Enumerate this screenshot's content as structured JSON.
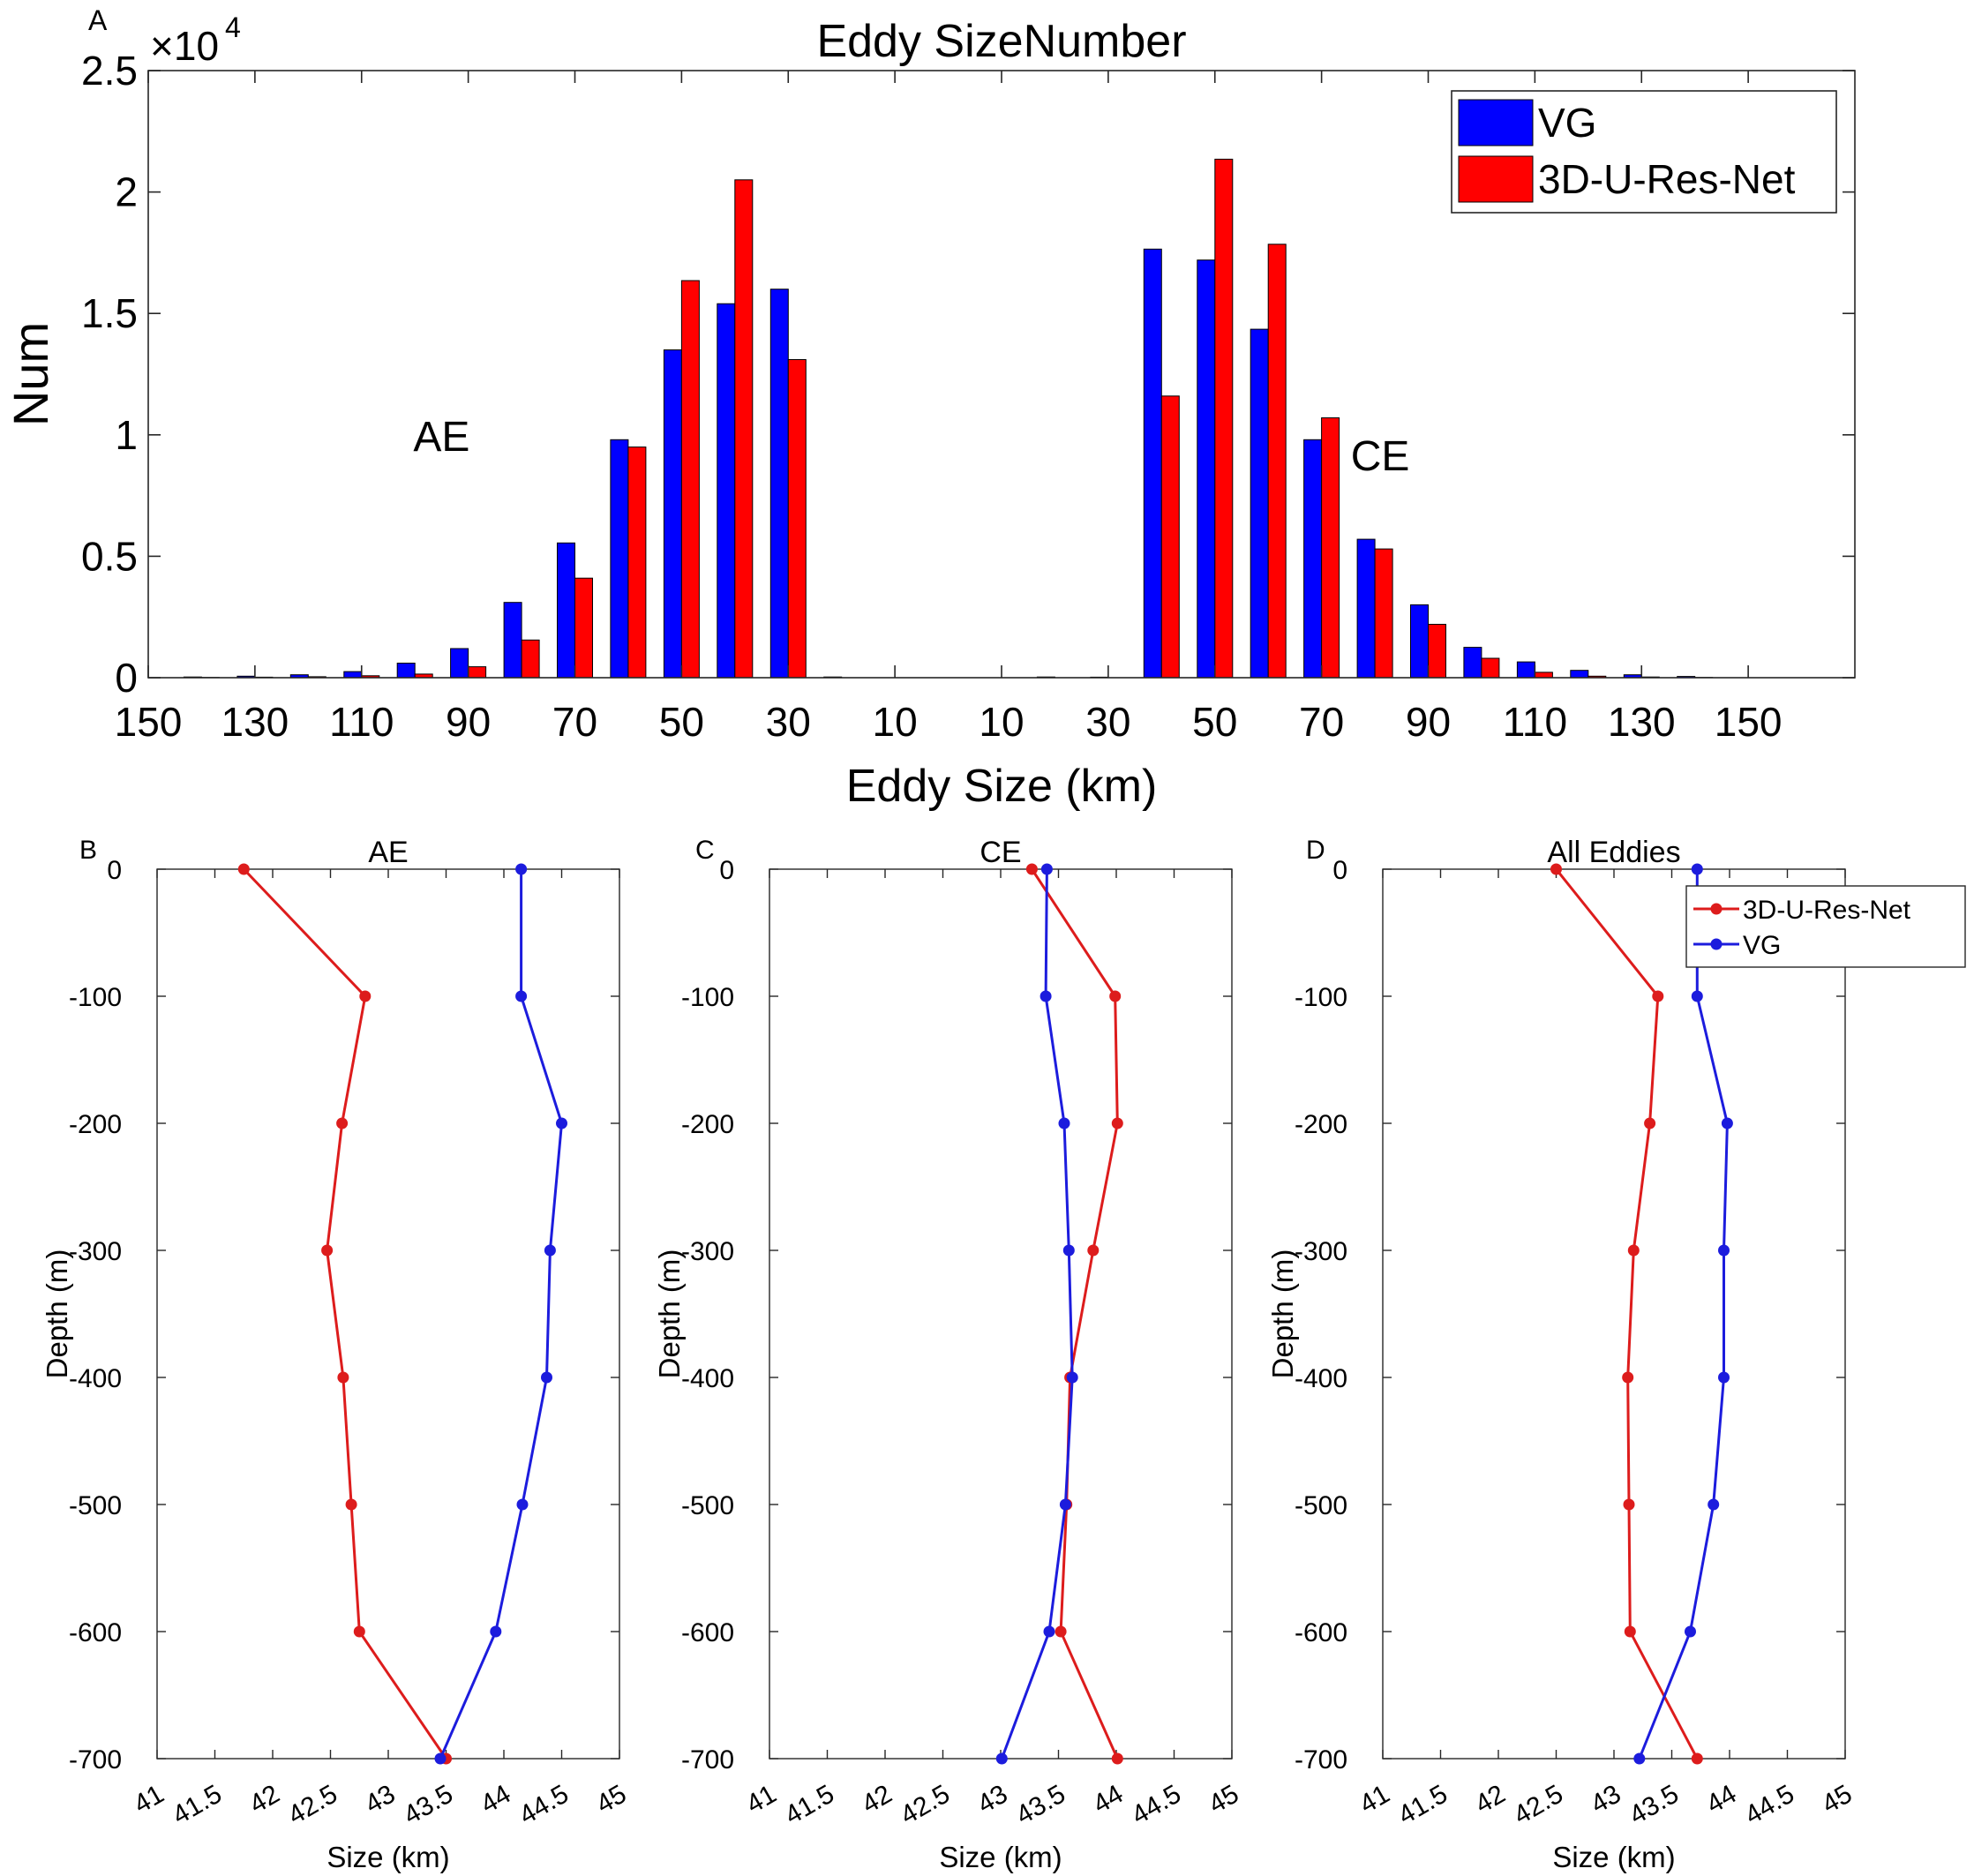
{
  "chart_data": [
    {
      "type": "bar",
      "panel_label": "A",
      "title": "Eddy SizeNumber",
      "xlabel": "Eddy Size (km)",
      "ylabel": "Num",
      "y_exponent_label": "×10",
      "y_exponent_power": "4",
      "ylim": [
        0,
        2.5
      ],
      "yticks": [
        "0",
        "0.5",
        "1",
        "1.5",
        "2",
        "2.5"
      ],
      "xticks": [
        "150",
        "130",
        "110",
        "90",
        "70",
        "50",
        "30",
        "10",
        "10",
        "30",
        "50",
        "70",
        "90",
        "110",
        "130",
        "150"
      ],
      "legend": {
        "placement": "top-right",
        "entries": [
          "VG",
          "3D-U-Res-Net"
        ]
      },
      "annotations": [
        {
          "text": "AE",
          "x": 95,
          "y": 1.0
        },
        {
          "text": "CE",
          "x": 71,
          "y": 0.92
        }
      ],
      "groups": [
        {
          "name": "AE",
          "categories": [
            140,
            130,
            120,
            110,
            100,
            90,
            80,
            70,
            60,
            50,
            40,
            30,
            20
          ],
          "series": [
            {
              "name": "VG",
              "color": "#0000ff",
              "values": [
                0.003,
                0.006,
                0.012,
                0.025,
                0.06,
                0.12,
                0.31,
                0.555,
                0.98,
                1.35,
                1.54,
                1.6,
                0.003
              ]
            },
            {
              "name": "3D-U-Res-Net",
              "color": "#ff0000",
              "values": [
                0.001,
                0.002,
                0.004,
                0.008,
                0.015,
                0.045,
                0.155,
                0.41,
                0.95,
                1.635,
                2.05,
                1.31,
                0.0
              ]
            }
          ]
        },
        {
          "name": "CE",
          "categories": [
            10,
            20,
            30,
            40,
            50,
            60,
            70,
            80,
            90,
            100,
            110,
            120,
            130
          ],
          "series": [
            {
              "name": "VG",
              "color": "#0000ff",
              "values": [
                0.003,
                0.002,
                1.765,
                1.72,
                1.435,
                0.98,
                0.57,
                0.3,
                0.125,
                0.065,
                0.03,
                0.012,
                0.005
              ]
            },
            {
              "name": "3D-U-Res-Net",
              "color": "#ff0000",
              "values": [
                0.0,
                0.0,
                1.16,
                2.135,
                1.785,
                1.07,
                0.53,
                0.22,
                0.08,
                0.022,
                0.006,
                0.003,
                0.001
              ]
            }
          ]
        }
      ]
    },
    {
      "type": "line",
      "panel_label": "B",
      "title": "AE",
      "xlabel": "Size (km)",
      "ylabel": "Depth (m)",
      "xlim": [
        41,
        45
      ],
      "ylim": [
        -700,
        0
      ],
      "xticks": [
        "41",
        "41.5",
        "42",
        "42.5",
        "43",
        "43.5",
        "44",
        "44.5",
        "45"
      ],
      "yticks": [
        "0",
        "-100",
        "-200",
        "-300",
        "-400",
        "-500",
        "-600",
        "-700"
      ],
      "y": [
        0,
        -100,
        -200,
        -300,
        -400,
        -500,
        -600,
        -700
      ],
      "series": [
        {
          "name": "3D-U-Res-Net",
          "color": "#dd1c1c",
          "x": [
            41.75,
            42.8,
            42.6,
            42.47,
            42.61,
            42.68,
            42.75,
            43.5
          ]
        },
        {
          "name": "VG",
          "color": "#1c1cdd",
          "x": [
            44.15,
            44.15,
            44.5,
            44.4,
            44.37,
            44.16,
            43.93,
            43.45
          ]
        }
      ]
    },
    {
      "type": "line",
      "panel_label": "C",
      "title": "CE",
      "xlabel": "Size (km)",
      "ylabel": "Depth (m)",
      "xlim": [
        41,
        45
      ],
      "ylim": [
        -700,
        0
      ],
      "xticks": [
        "41",
        "41.5",
        "42",
        "42.5",
        "43",
        "43.5",
        "44",
        "44.5",
        "45"
      ],
      "yticks": [
        "0",
        "-100",
        "-200",
        "-300",
        "-400",
        "-500",
        "-600",
        "-700"
      ],
      "y": [
        0,
        -100,
        -200,
        -300,
        -400,
        -500,
        -600,
        -700
      ],
      "series": [
        {
          "name": "3D-U-Res-Net",
          "color": "#dd1c1c",
          "x": [
            43.27,
            43.99,
            44.01,
            43.8,
            43.6,
            43.57,
            43.52,
            44.01
          ]
        },
        {
          "name": "VG",
          "color": "#1c1cdd",
          "x": [
            43.4,
            43.39,
            43.55,
            43.59,
            43.62,
            43.56,
            43.42,
            43.01
          ]
        }
      ]
    },
    {
      "type": "line",
      "panel_label": "D",
      "title": "All Eddies",
      "xlabel": "Size (km)",
      "ylabel": "Depth (m)",
      "xlim": [
        41,
        45
      ],
      "ylim": [
        -700,
        0
      ],
      "xticks": [
        "41",
        "41.5",
        "42",
        "42.5",
        "43",
        "43.5",
        "44",
        "44.5",
        "45"
      ],
      "yticks": [
        "0",
        "-100",
        "-200",
        "-300",
        "-400",
        "-500",
        "-600",
        "-700"
      ],
      "y": [
        0,
        -100,
        -200,
        -300,
        -400,
        -500,
        -600,
        -700
      ],
      "legend": {
        "placement": "top-right",
        "entries": [
          "3D-U-Res-Net",
          "VG"
        ]
      },
      "series": [
        {
          "name": "3D-U-Res-Net",
          "color": "#dd1c1c",
          "x": [
            42.5,
            43.38,
            43.31,
            43.17,
            43.12,
            43.13,
            43.14,
            43.72
          ]
        },
        {
          "name": "VG",
          "color": "#1c1cdd",
          "x": [
            43.72,
            43.72,
            43.98,
            43.95,
            43.95,
            43.86,
            43.66,
            43.22
          ]
        }
      ]
    }
  ]
}
